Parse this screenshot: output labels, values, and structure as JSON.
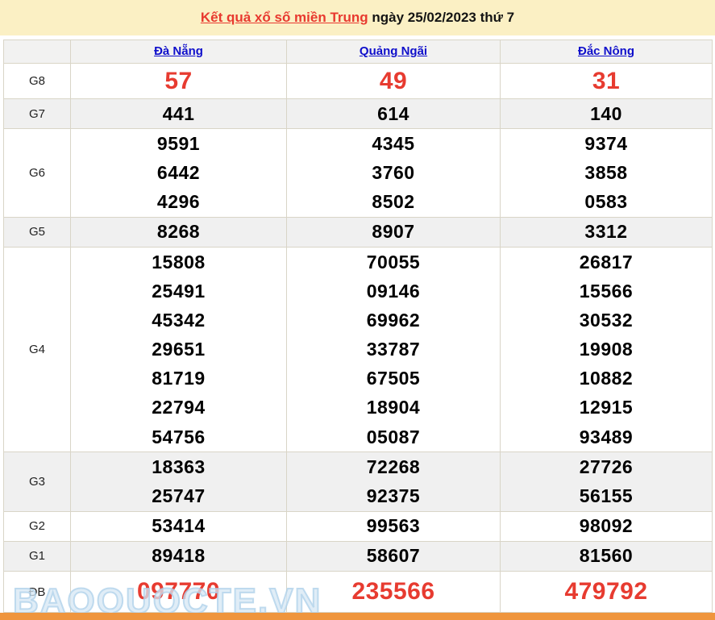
{
  "title": {
    "link": "Kết quả xổ số miền Trung",
    "rest": " ngày 25/02/2023 thứ 7"
  },
  "table": {
    "columns": [
      "Đà Nẵng",
      "Quảng Ngãi",
      "Đắc Nông"
    ],
    "rows": [
      {
        "id": "g8",
        "label": "G8",
        "highlight": true,
        "values": [
          [
            "57"
          ],
          [
            "49"
          ],
          [
            "31"
          ]
        ]
      },
      {
        "id": "g7",
        "label": "G7",
        "highlight": false,
        "values": [
          [
            "441"
          ],
          [
            "614"
          ],
          [
            "140"
          ]
        ]
      },
      {
        "id": "g6",
        "label": "G6",
        "highlight": false,
        "values": [
          [
            "9591",
            "6442",
            "4296"
          ],
          [
            "4345",
            "3760",
            "8502"
          ],
          [
            "9374",
            "3858",
            "0583"
          ]
        ]
      },
      {
        "id": "g5",
        "label": "G5",
        "highlight": false,
        "values": [
          [
            "8268"
          ],
          [
            "8907"
          ],
          [
            "3312"
          ]
        ]
      },
      {
        "id": "g4",
        "label": "G4",
        "highlight": false,
        "values": [
          [
            "15808",
            "25491",
            "45342",
            "29651",
            "81719",
            "22794",
            "54756"
          ],
          [
            "70055",
            "09146",
            "69962",
            "33787",
            "67505",
            "18904",
            "05087"
          ],
          [
            "26817",
            "15566",
            "30532",
            "19908",
            "10882",
            "12915",
            "93489"
          ]
        ]
      },
      {
        "id": "g3",
        "label": "G3",
        "highlight": false,
        "values": [
          [
            "18363",
            "25747"
          ],
          [
            "72268",
            "92375"
          ],
          [
            "27726",
            "56155"
          ]
        ]
      },
      {
        "id": "g2",
        "label": "G2",
        "highlight": false,
        "values": [
          [
            "53414"
          ],
          [
            "99563"
          ],
          [
            "98092"
          ]
        ]
      },
      {
        "id": "g1",
        "label": "G1",
        "highlight": false,
        "values": [
          [
            "89418"
          ],
          [
            "58607"
          ],
          [
            "81560"
          ]
        ]
      },
      {
        "id": "db",
        "label": "ĐB",
        "highlight": true,
        "values": [
          [
            "097770"
          ],
          [
            "235566"
          ],
          [
            "479792"
          ]
        ]
      }
    ]
  },
  "watermark": "BAOQUOCTE.VN",
  "colors": {
    "title_bg": "#fbf0c4",
    "title_link_red": "#e8392f",
    "column_link_blue": "#0f0fcb",
    "highlight_red": "#e73b30",
    "zebra_row": "#f0f0f0",
    "header_row": "#f2f2f1",
    "border": "#d9d5c7",
    "bottom_bar_orange": "#ef953d"
  }
}
